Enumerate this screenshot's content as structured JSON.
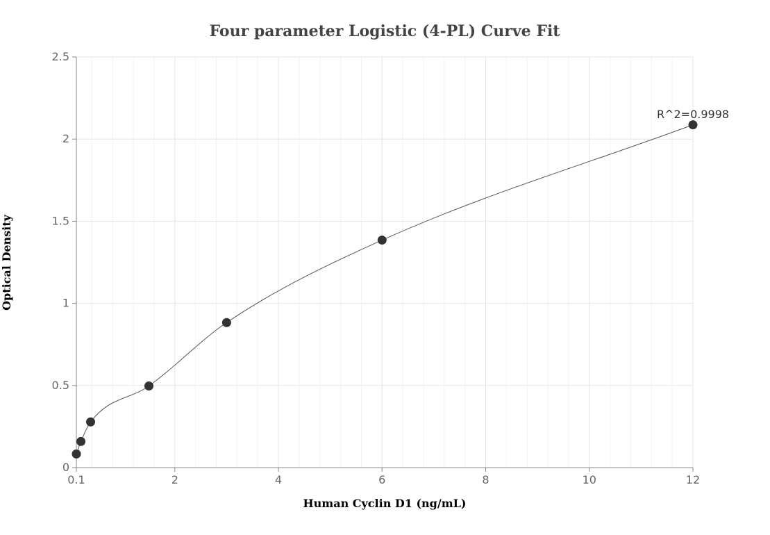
{
  "chart_data": {
    "type": "scatter",
    "title": "Four parameter Logistic (4-PL) Curve Fit",
    "xlabel": "Human Cyclin D1 (ng/mL)",
    "ylabel": "Optical Density",
    "xlim": [
      0.1,
      12
    ],
    "ylim": [
      0,
      2.5
    ],
    "x_ticks": [
      0.1,
      2,
      4,
      6,
      8,
      10,
      12
    ],
    "x_tick_labels": [
      "0.1",
      "2",
      "4",
      "6",
      "8",
      "10",
      "12"
    ],
    "y_ticks": [
      0,
      0.5,
      1,
      1.5,
      2,
      2.5
    ],
    "y_tick_labels": [
      "0",
      "0.5",
      "1",
      "1.5",
      "2",
      "2.5"
    ],
    "grid": true,
    "series": [
      {
        "points": [
          {
            "x": 0.1,
            "y": 0.083
          },
          {
            "x": 0.188,
            "y": 0.159
          },
          {
            "x": 0.375,
            "y": 0.278
          },
          {
            "x": 1.5,
            "y": 0.497
          },
          {
            "x": 3,
            "y": 0.883
          },
          {
            "x": 6,
            "y": 1.385
          },
          {
            "x": 12,
            "y": 2.087
          }
        ],
        "color": "#333333",
        "fit": "4PL"
      }
    ],
    "annotation": "R^2=0.9998"
  }
}
